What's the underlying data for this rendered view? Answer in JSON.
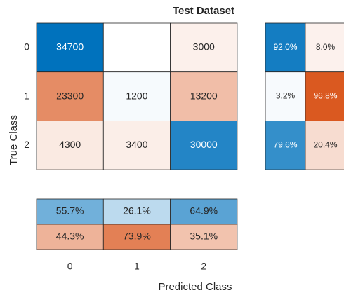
{
  "chart_data": {
    "type": "confusion_matrix",
    "title": "Test Dataset",
    "xlabel": "Predicted Class",
    "ylabel": "True Class",
    "classes": [
      "0",
      "1",
      "2"
    ],
    "matrix": [
      [
        34700,
        null,
        3000
      ],
      [
        23300,
        1200,
        13200
      ],
      [
        4300,
        3400,
        30000
      ]
    ],
    "row_summary": {
      "values": [
        [
          92.0,
          8.0
        ],
        [
          3.2,
          96.8
        ],
        [
          79.6,
          20.4
        ]
      ],
      "value_labels": [
        [
          "92.0%",
          "8.0%"
        ],
        [
          "3.2%",
          "96.8%"
        ],
        [
          "79.6%",
          "20.4%"
        ]
      ]
    },
    "column_summary": {
      "values": [
        [
          55.7,
          26.1,
          64.9
        ],
        [
          44.3,
          73.9,
          35.1
        ]
      ],
      "value_labels": [
        [
          "55.7%",
          "26.1%",
          "64.9%"
        ],
        [
          "44.3%",
          "73.9%",
          "35.1%"
        ]
      ]
    },
    "diagonal_color": "#0072bd",
    "off_diagonal_color": "#d95319"
  }
}
